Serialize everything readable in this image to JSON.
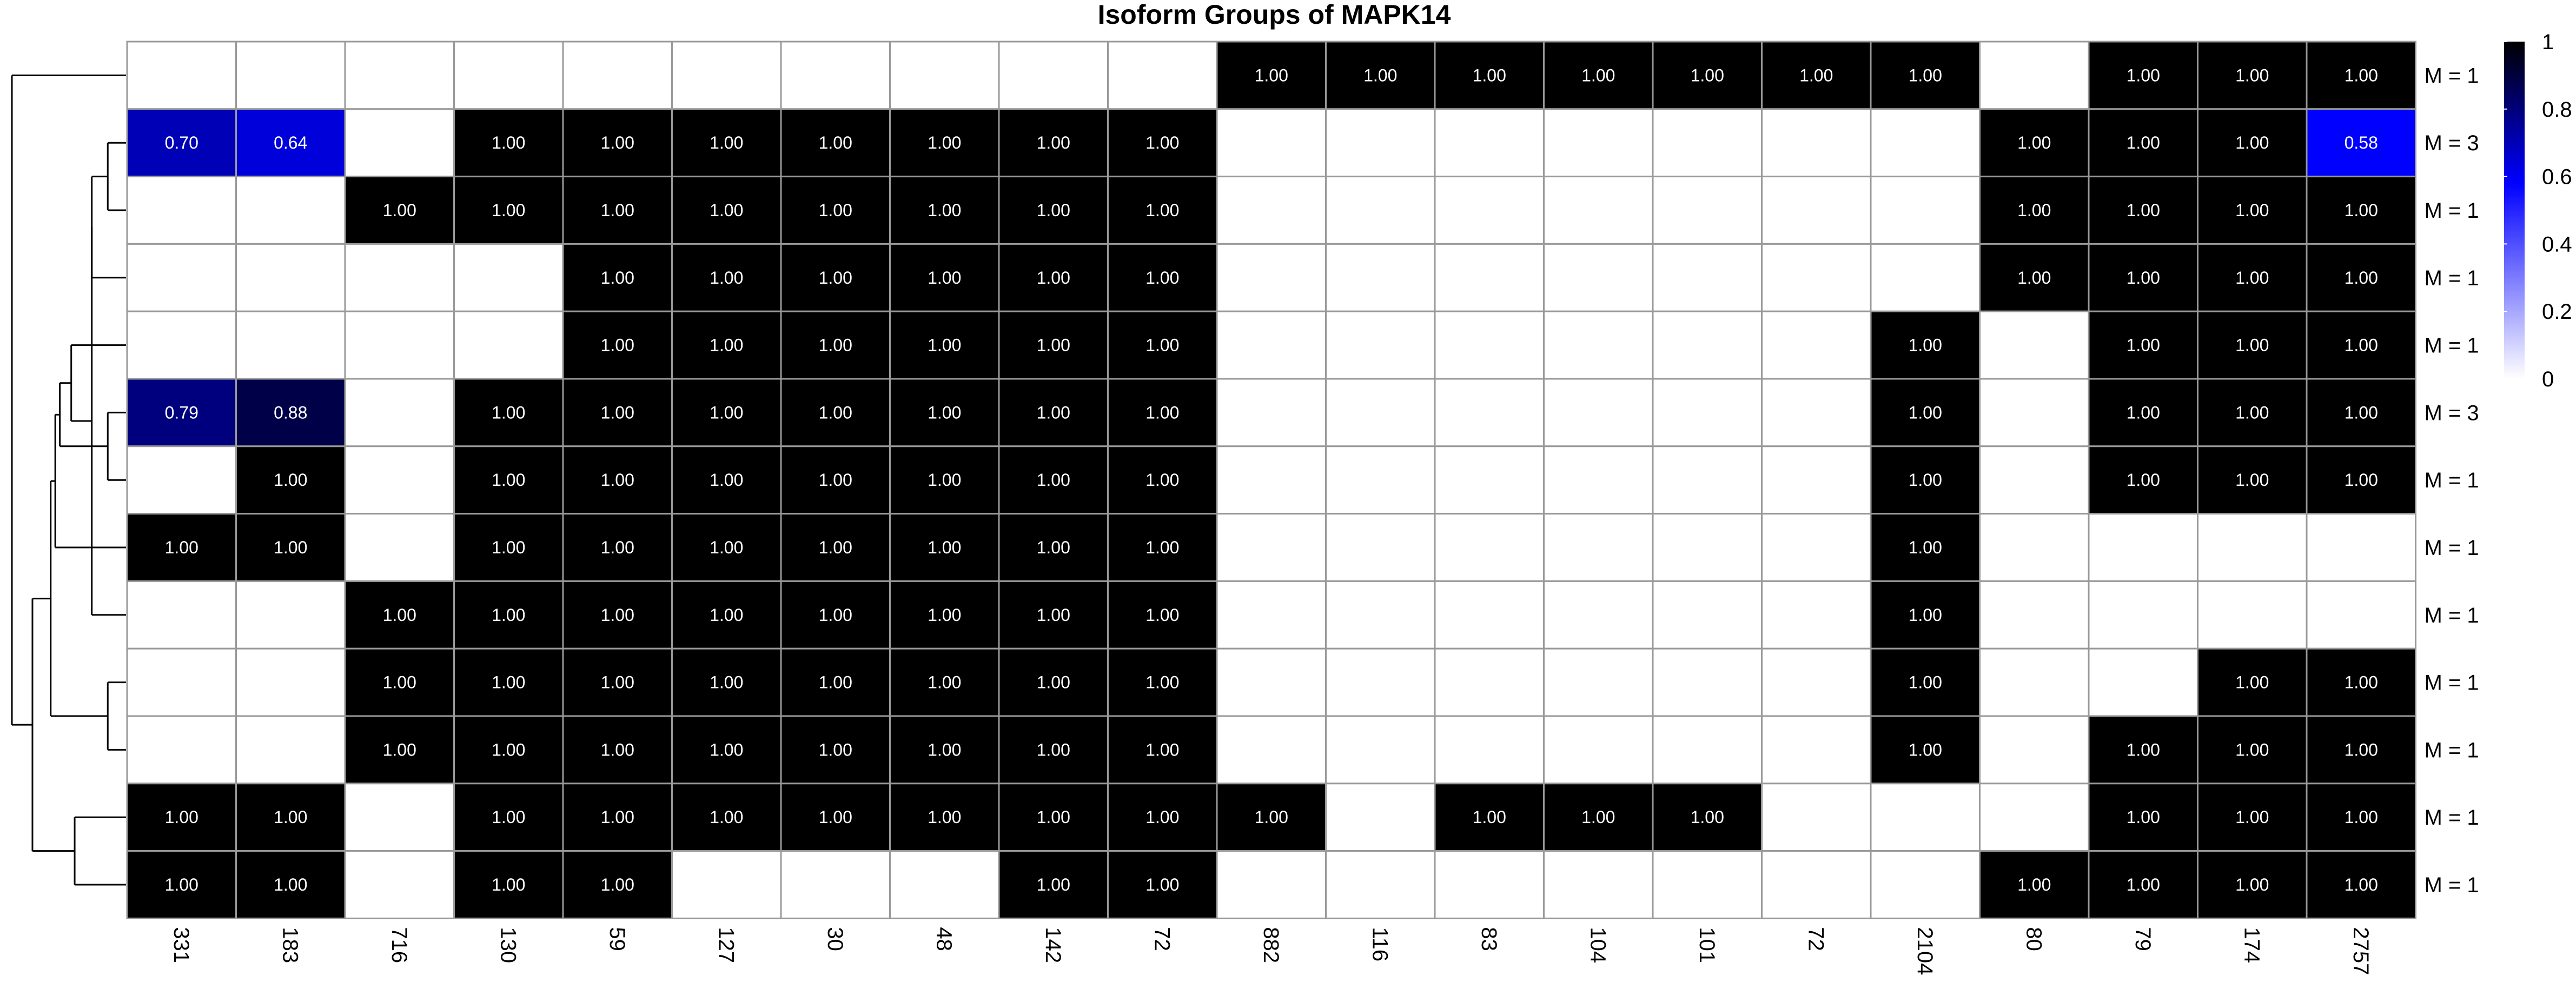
{
  "chart_data": {
    "type": "heatmap",
    "title": "Isoform Groups of MAPK14",
    "columns": [
      "331",
      "183",
      "716",
      "130",
      "59",
      "127",
      "30",
      "48",
      "142",
      "72",
      "882",
      "116",
      "83",
      "104",
      "101",
      "72",
      "2104",
      "80",
      "79",
      "174",
      "2757"
    ],
    "row_labels": [
      "M = 1",
      "M = 3",
      "M = 1",
      "M = 1",
      "M = 1",
      "M = 3",
      "M = 1",
      "M = 1",
      "M = 1",
      "M = 1",
      "M = 1",
      "M = 1",
      "M = 1"
    ],
    "values": [
      [
        null,
        null,
        null,
        null,
        null,
        null,
        null,
        null,
        null,
        null,
        1,
        1,
        1,
        1,
        1,
        1,
        1,
        null,
        1,
        1,
        1
      ],
      [
        0.7,
        0.64,
        null,
        1,
        1,
        1,
        1,
        1,
        1,
        1,
        null,
        null,
        null,
        null,
        null,
        null,
        null,
        1,
        1,
        1,
        0.58
      ],
      [
        null,
        null,
        1,
        1,
        1,
        1,
        1,
        1,
        1,
        1,
        null,
        null,
        null,
        null,
        null,
        null,
        null,
        1,
        1,
        1,
        1
      ],
      [
        null,
        null,
        null,
        null,
        1,
        1,
        1,
        1,
        1,
        1,
        null,
        null,
        null,
        null,
        null,
        null,
        null,
        1,
        1,
        1,
        1
      ],
      [
        null,
        null,
        null,
        null,
        1,
        1,
        1,
        1,
        1,
        1,
        null,
        null,
        null,
        null,
        null,
        null,
        1,
        null,
        1,
        1,
        1
      ],
      [
        0.79,
        0.88,
        null,
        1,
        1,
        1,
        1,
        1,
        1,
        1,
        null,
        null,
        null,
        null,
        null,
        null,
        1,
        null,
        1,
        1,
        1
      ],
      [
        null,
        1,
        null,
        1,
        1,
        1,
        1,
        1,
        1,
        1,
        null,
        null,
        null,
        null,
        null,
        null,
        1,
        null,
        1,
        1,
        1
      ],
      [
        1,
        1,
        null,
        1,
        1,
        1,
        1,
        1,
        1,
        1,
        null,
        null,
        null,
        null,
        null,
        null,
        1,
        null,
        null,
        null,
        null
      ],
      [
        null,
        null,
        1,
        1,
        1,
        1,
        1,
        1,
        1,
        1,
        null,
        null,
        null,
        null,
        null,
        null,
        1,
        null,
        null,
        null,
        null
      ],
      [
        null,
        null,
        1,
        1,
        1,
        1,
        1,
        1,
        1,
        1,
        null,
        null,
        null,
        null,
        null,
        null,
        1,
        null,
        null,
        1,
        1
      ],
      [
        null,
        null,
        1,
        1,
        1,
        1,
        1,
        1,
        1,
        1,
        null,
        null,
        null,
        null,
        null,
        null,
        1,
        null,
        1,
        1,
        1
      ],
      [
        1,
        1,
        null,
        1,
        1,
        1,
        1,
        1,
        1,
        1,
        1,
        null,
        1,
        1,
        1,
        null,
        null,
        null,
        1,
        1,
        1
      ],
      [
        1,
        1,
        null,
        1,
        1,
        null,
        null,
        null,
        1,
        1,
        null,
        null,
        null,
        null,
        null,
        null,
        null,
        1,
        1,
        1,
        1
      ]
    ],
    "color_scale": {
      "min": 0,
      "max": 1,
      "low_color": "#ffffff",
      "mid_color": "#0000ff",
      "high_color": "#000000",
      "ticks": [
        0,
        0.2,
        0.4,
        0.6,
        0.8,
        1
      ]
    },
    "cell_label_decimals": 2,
    "grid_color": "#999999",
    "legend_position": "right",
    "dendrogram": {
      "side": "left",
      "leaf_order": [
        0,
        1,
        2,
        3,
        4,
        5,
        6,
        7,
        8,
        9,
        10,
        11,
        12
      ],
      "merges": [
        [
          1,
          2,
          0.16
        ],
        [
          5,
          6,
          0.16
        ],
        [
          9,
          10,
          0.16
        ],
        [
          13,
          3,
          0.3
        ],
        [
          16,
          8,
          0.3
        ],
        [
          11,
          12,
          0.45
        ],
        [
          17,
          4,
          0.48
        ],
        [
          14,
          19,
          0.58
        ],
        [
          20,
          7,
          0.62
        ],
        [
          21,
          15,
          0.66
        ],
        [
          22,
          18,
          0.82
        ],
        [
          0,
          23,
          1.0
        ]
      ]
    }
  }
}
